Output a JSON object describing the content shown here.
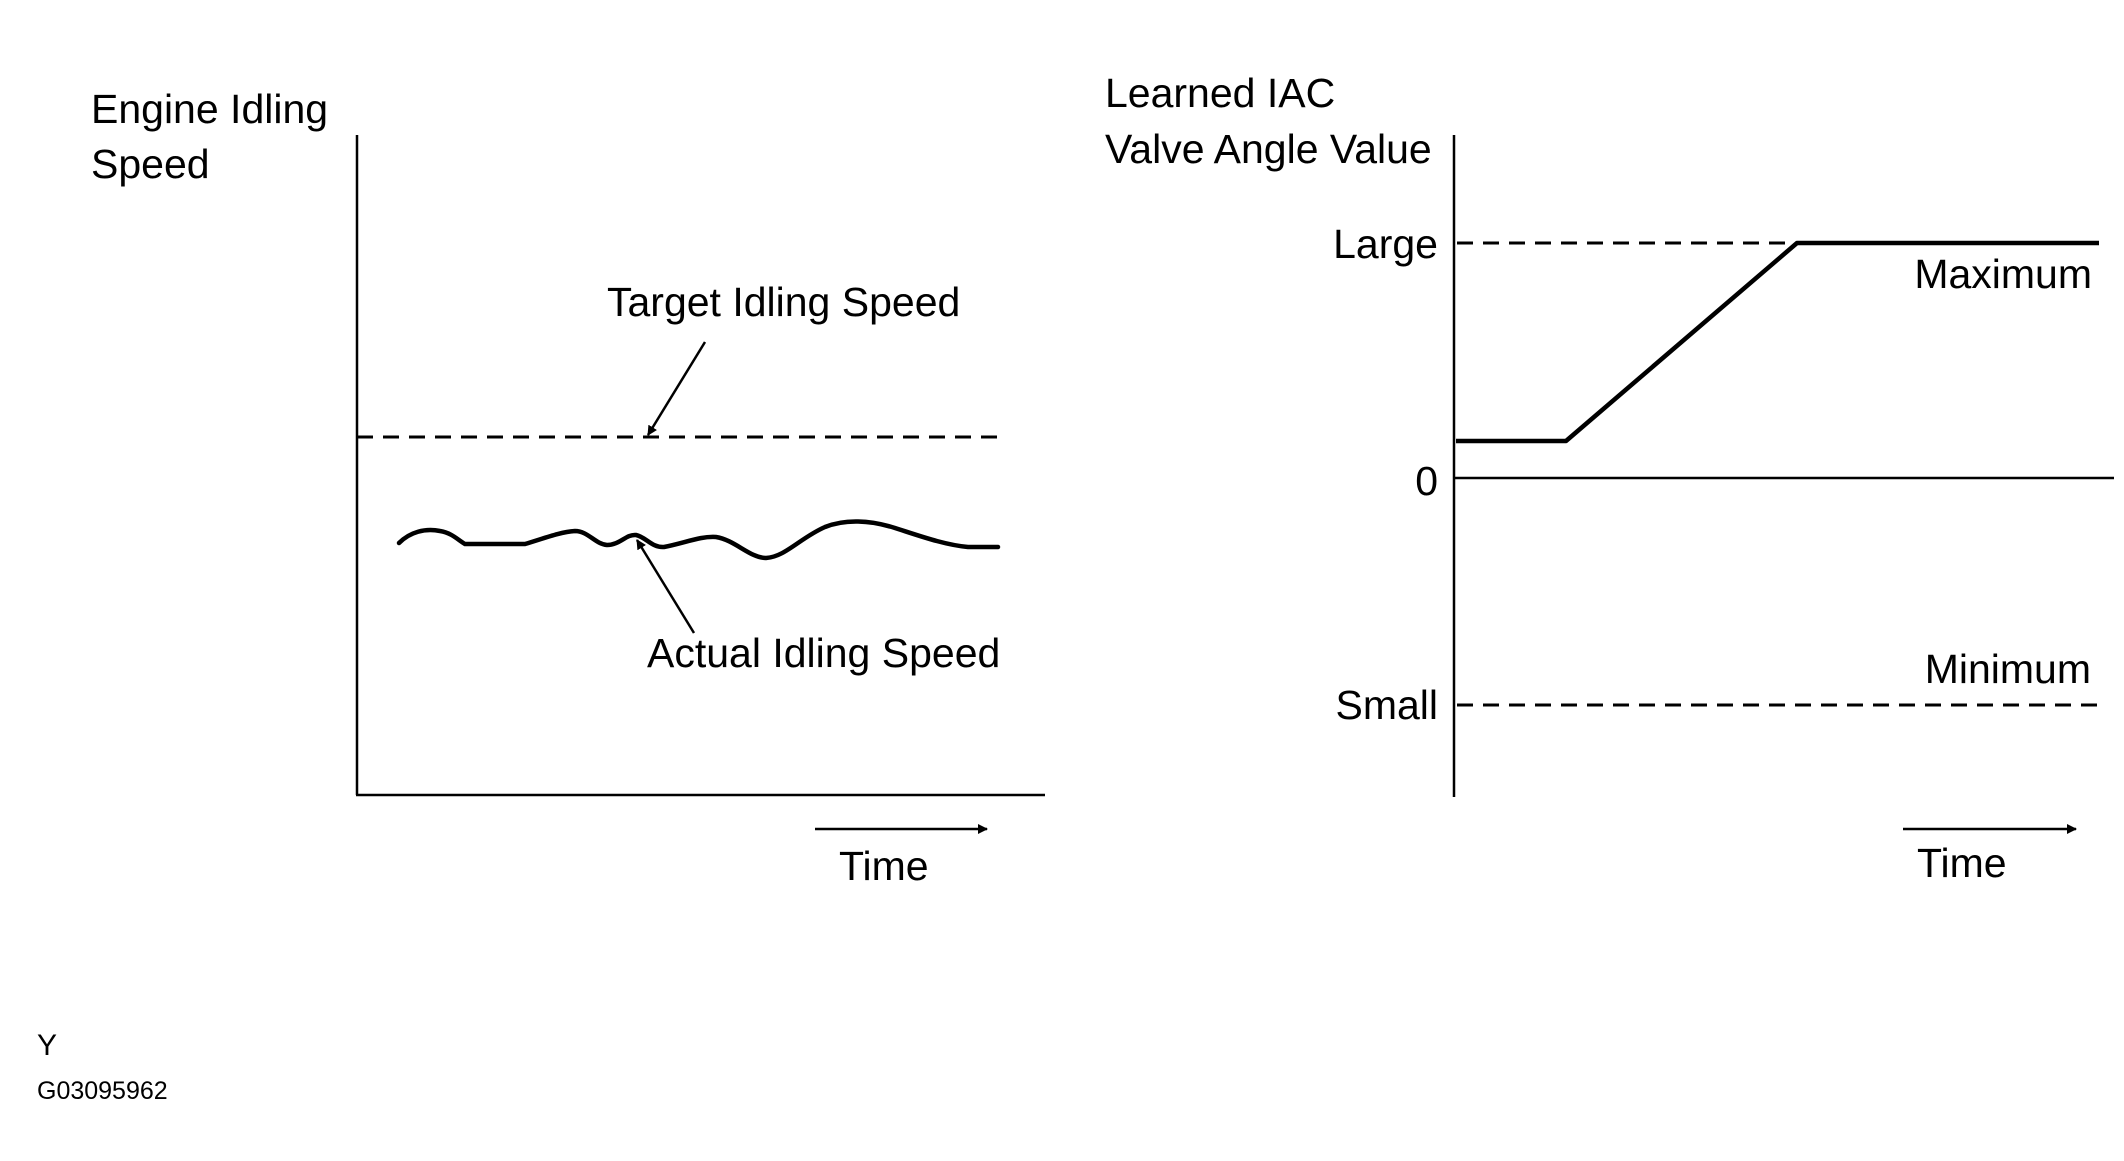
{
  "left_chart": {
    "y_axis_label_line1": "Engine Idling",
    "y_axis_label_line2": "Speed",
    "target_label": "Target Idling Speed",
    "actual_label": "Actual Idling Speed",
    "x_label": "Time"
  },
  "right_chart": {
    "y_axis_label_line1": "Learned IAC",
    "y_axis_label_line2": "Valve Angle Value",
    "tick_large": "Large",
    "tick_zero": "0",
    "tick_small": "Small",
    "max_label": "Maximum",
    "min_label": "Minimum",
    "x_label": "Time"
  },
  "footer": {
    "letter": "Y",
    "code": "G03095962"
  },
  "colors": {
    "ink": "#000000",
    "background": "#ffffff"
  }
}
